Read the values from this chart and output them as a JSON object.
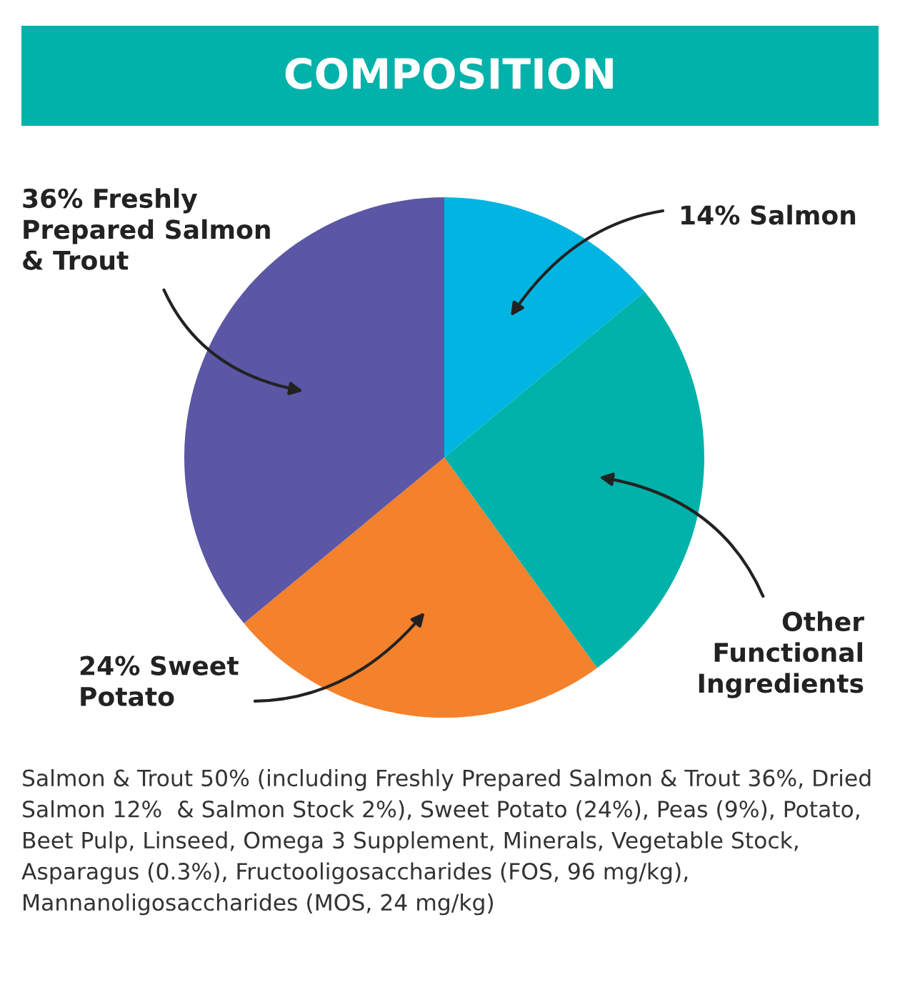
{
  "chart_data": {
    "type": "pie",
    "title": "COMPOSITION",
    "categories": [
      "14% Salmon",
      "Other\nFunctional\nIngredients",
      "24% Sweet\nPotato",
      "36% Freshly\nPrepared Salmon\n& Trout"
    ],
    "values": [
      14,
      26,
      24,
      36
    ],
    "colors": [
      "#00b5e2",
      "#00b2a9",
      "#f4812b",
      "#5b57a5"
    ],
    "annotations": [
      "Salmon & Trout 50% (including Freshly Prepared Salmon & Trout 36%, Dried Salmon 12%  & Salmon Stock 2%), Sweet Potato (24%), Peas (9%), Potato, Beet Pulp, Linseed, Omega 3 Supplement, Minerals, Vegetable Stock, Asparagus (0.3%), Fructooligosaccharides (FOS, 96 mg/kg),  Mannanoligosaccharides (MOS, 24 mg/kg)"
    ]
  }
}
